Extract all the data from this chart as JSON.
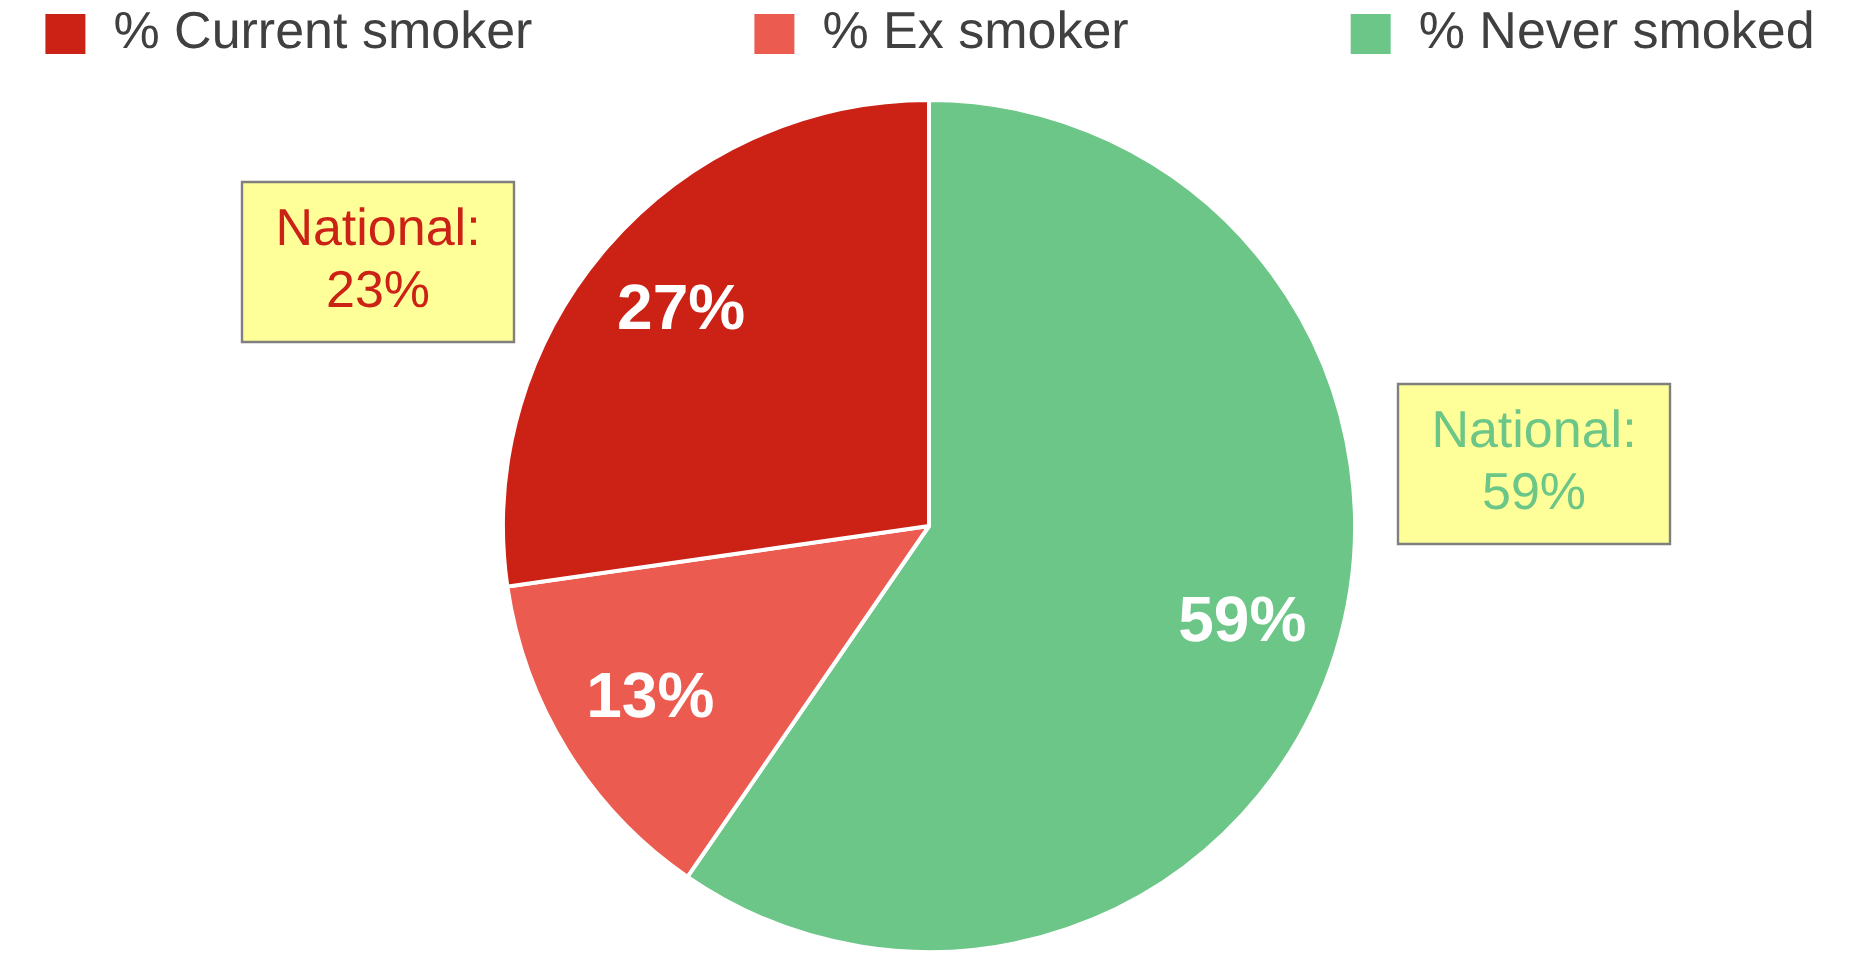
{
  "chart_data": {
    "type": "pie",
    "categories": [
      "% Current smoker",
      "% Ex smoker",
      "% Never smoked"
    ],
    "values": [
      27,
      13,
      59
    ],
    "colors": [
      "#cc2216",
      "#eb5b50",
      "#6cc687"
    ],
    "value_labels": [
      "27%",
      "13%",
      "59%"
    ],
    "legend": "top",
    "annotations": [
      {
        "text": "National: 23%",
        "x": "% Current smoker"
      },
      {
        "text": "National: 59%",
        "x": "% Never smoked"
      }
    ]
  }
}
